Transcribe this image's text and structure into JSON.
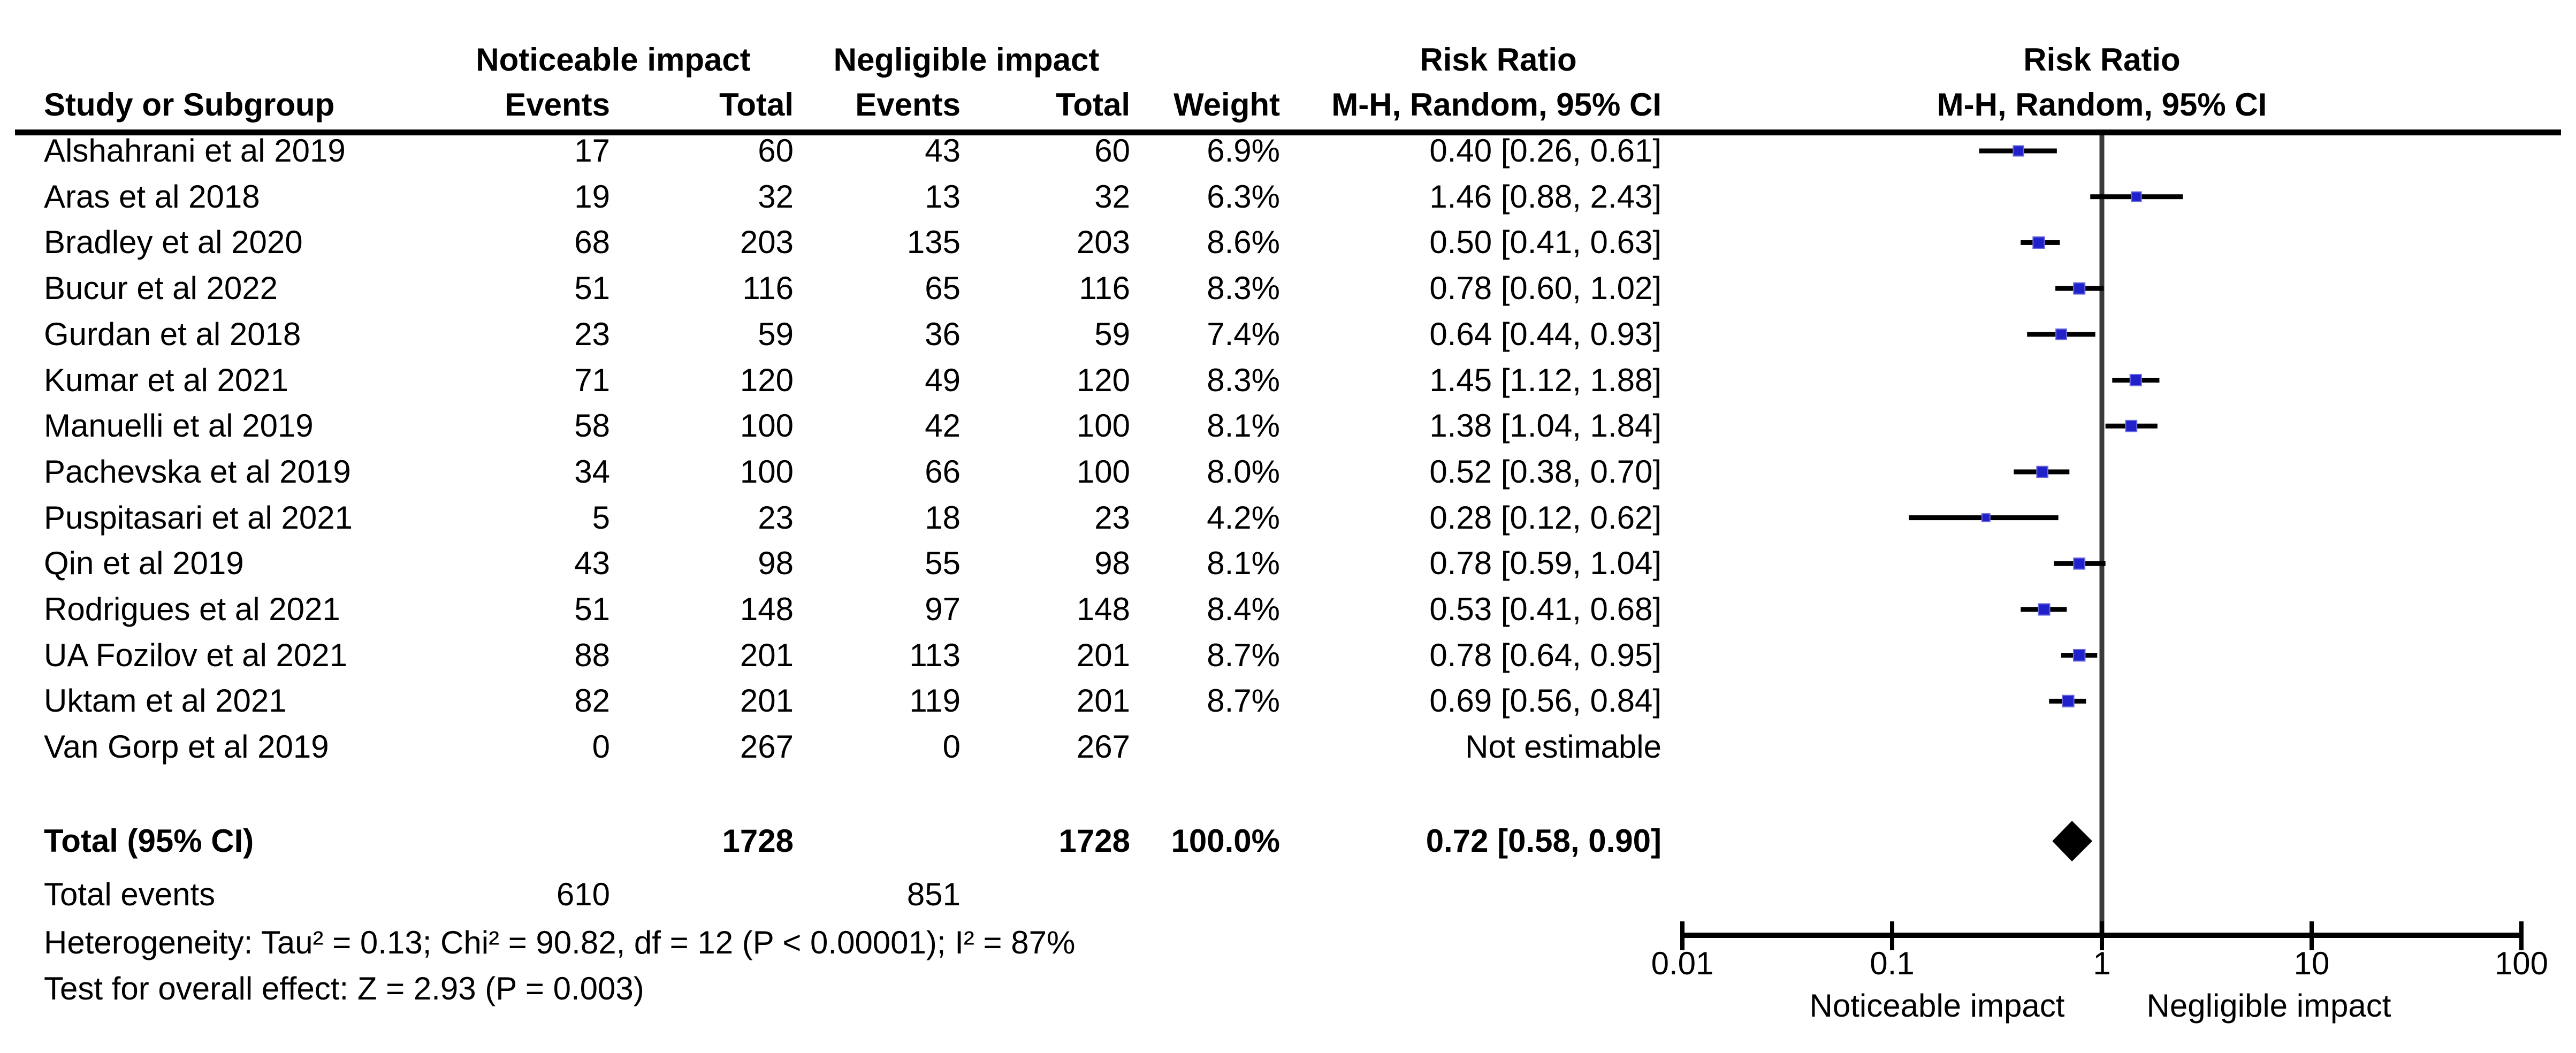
{
  "figure": {
    "group1_header": "Noticeable impact",
    "group2_header": "Negligible impact",
    "risk_ratio_header": "Risk Ratio",
    "method_header": "M-H, Random, 95% CI",
    "study_header": "Study or Subgroup",
    "events_header": "Events",
    "total_header": "Total",
    "weight_header": "Weight"
  },
  "colors": {
    "marker_blue": "#2121CC",
    "marker_border": "#6A6ADF",
    "diamond_black": "#000000",
    "null_line_gray": "#3A3A3A",
    "text_black": "#000000"
  },
  "chart_data": {
    "type": "scatter",
    "subtype": "forest-plot",
    "title": "Risk Ratio, M-H, Random, 95% CI",
    "x_scale": "log10",
    "x_range": [
      0.01,
      100
    ],
    "x_ticks": [
      0.01,
      0.1,
      1,
      10,
      100
    ],
    "x_tick_labels": [
      "0.01",
      "0.1",
      "1",
      "10",
      "100"
    ],
    "null_line_value": 1,
    "legend_position": "none",
    "grid": false,
    "axis_labels": {
      "left": "Noticeable impact",
      "right": "Negligible impact"
    },
    "studies": [
      {
        "name": "Alshahrani et al 2019",
        "events1": 17,
        "total1": 60,
        "events2": 43,
        "total2": 60,
        "weight": "6.9%",
        "weight_value": 6.9,
        "rr_text": "0.40 [0.26, 0.61]",
        "rr": 0.4,
        "ci_low": 0.26,
        "ci_high": 0.61
      },
      {
        "name": "Aras et al 2018",
        "events1": 19,
        "total1": 32,
        "events2": 13,
        "total2": 32,
        "weight": "6.3%",
        "weight_value": 6.3,
        "rr_text": "1.46 [0.88, 2.43]",
        "rr": 1.46,
        "ci_low": 0.88,
        "ci_high": 2.43
      },
      {
        "name": "Bradley et al 2020",
        "events1": 68,
        "total1": 203,
        "events2": 135,
        "total2": 203,
        "weight": "8.6%",
        "weight_value": 8.6,
        "rr_text": "0.50 [0.41, 0.63]",
        "rr": 0.5,
        "ci_low": 0.41,
        "ci_high": 0.63
      },
      {
        "name": "Bucur et al 2022",
        "events1": 51,
        "total1": 116,
        "events2": 65,
        "total2": 116,
        "weight": "8.3%",
        "weight_value": 8.3,
        "rr_text": "0.78 [0.60, 1.02]",
        "rr": 0.78,
        "ci_low": 0.6,
        "ci_high": 1.02
      },
      {
        "name": "Gurdan et al 2018",
        "events1": 23,
        "total1": 59,
        "events2": 36,
        "total2": 59,
        "weight": "7.4%",
        "weight_value": 7.4,
        "rr_text": "0.64 [0.44, 0.93]",
        "rr": 0.64,
        "ci_low": 0.44,
        "ci_high": 0.93
      },
      {
        "name": "Kumar et al 2021",
        "events1": 71,
        "total1": 120,
        "events2": 49,
        "total2": 120,
        "weight": "8.3%",
        "weight_value": 8.3,
        "rr_text": "1.45 [1.12, 1.88]",
        "rr": 1.45,
        "ci_low": 1.12,
        "ci_high": 1.88
      },
      {
        "name": "Manuelli et al 2019",
        "events1": 58,
        "total1": 100,
        "events2": 42,
        "total2": 100,
        "weight": "8.1%",
        "weight_value": 8.1,
        "rr_text": "1.38 [1.04, 1.84]",
        "rr": 1.38,
        "ci_low": 1.04,
        "ci_high": 1.84
      },
      {
        "name": "Pachevska et al 2019",
        "events1": 34,
        "total1": 100,
        "events2": 66,
        "total2": 100,
        "weight": "8.0%",
        "weight_value": 8.0,
        "rr_text": "0.52 [0.38, 0.70]",
        "rr": 0.52,
        "ci_low": 0.38,
        "ci_high": 0.7
      },
      {
        "name": "Puspitasari et al 2021",
        "events1": 5,
        "total1": 23,
        "events2": 18,
        "total2": 23,
        "weight": "4.2%",
        "weight_value": 4.2,
        "rr_text": "0.28 [0.12, 0.62]",
        "rr": 0.28,
        "ci_low": 0.12,
        "ci_high": 0.62
      },
      {
        "name": "Qin et al 2019",
        "events1": 43,
        "total1": 98,
        "events2": 55,
        "total2": 98,
        "weight": "8.1%",
        "weight_value": 8.1,
        "rr_text": "0.78 [0.59, 1.04]",
        "rr": 0.78,
        "ci_low": 0.59,
        "ci_high": 1.04
      },
      {
        "name": "Rodrigues et al 2021",
        "events1": 51,
        "total1": 148,
        "events2": 97,
        "total2": 148,
        "weight": "8.4%",
        "weight_value": 8.4,
        "rr_text": "0.53 [0.41, 0.68]",
        "rr": 0.53,
        "ci_low": 0.41,
        "ci_high": 0.68
      },
      {
        "name": "UA Fozilov et al 2021",
        "events1": 88,
        "total1": 201,
        "events2": 113,
        "total2": 201,
        "weight": "8.7%",
        "weight_value": 8.7,
        "rr_text": "0.78 [0.64, 0.95]",
        "rr": 0.78,
        "ci_low": 0.64,
        "ci_high": 0.95
      },
      {
        "name": "Uktam et al 2021",
        "events1": 82,
        "total1": 201,
        "events2": 119,
        "total2": 201,
        "weight": "8.7%",
        "weight_value": 8.7,
        "rr_text": "0.69 [0.56, 0.84]",
        "rr": 0.69,
        "ci_low": 0.56,
        "ci_high": 0.84
      },
      {
        "name": "Van Gorp et al 2019",
        "events1": 0,
        "total1": 267,
        "events2": 0,
        "total2": 267,
        "weight": "",
        "weight_value": null,
        "rr_text": "Not estimable",
        "rr": null,
        "ci_low": null,
        "ci_high": null
      }
    ],
    "total": {
      "label": "Total (95% CI)",
      "total1": 1728,
      "total2": 1728,
      "weight": "100.0%",
      "rr_text": "0.72 [0.58, 0.90]",
      "rr": 0.72,
      "ci_low": 0.58,
      "ci_high": 0.9
    },
    "total_events": {
      "label": "Total events",
      "events1": 610,
      "events2": 851
    },
    "footnotes": [
      "Heterogeneity: Tau² = 0.13; Chi² = 90.82, df = 12 (P < 0.00001); I² = 87%",
      "Test for overall effect: Z = 2.93 (P = 0.003)"
    ]
  }
}
